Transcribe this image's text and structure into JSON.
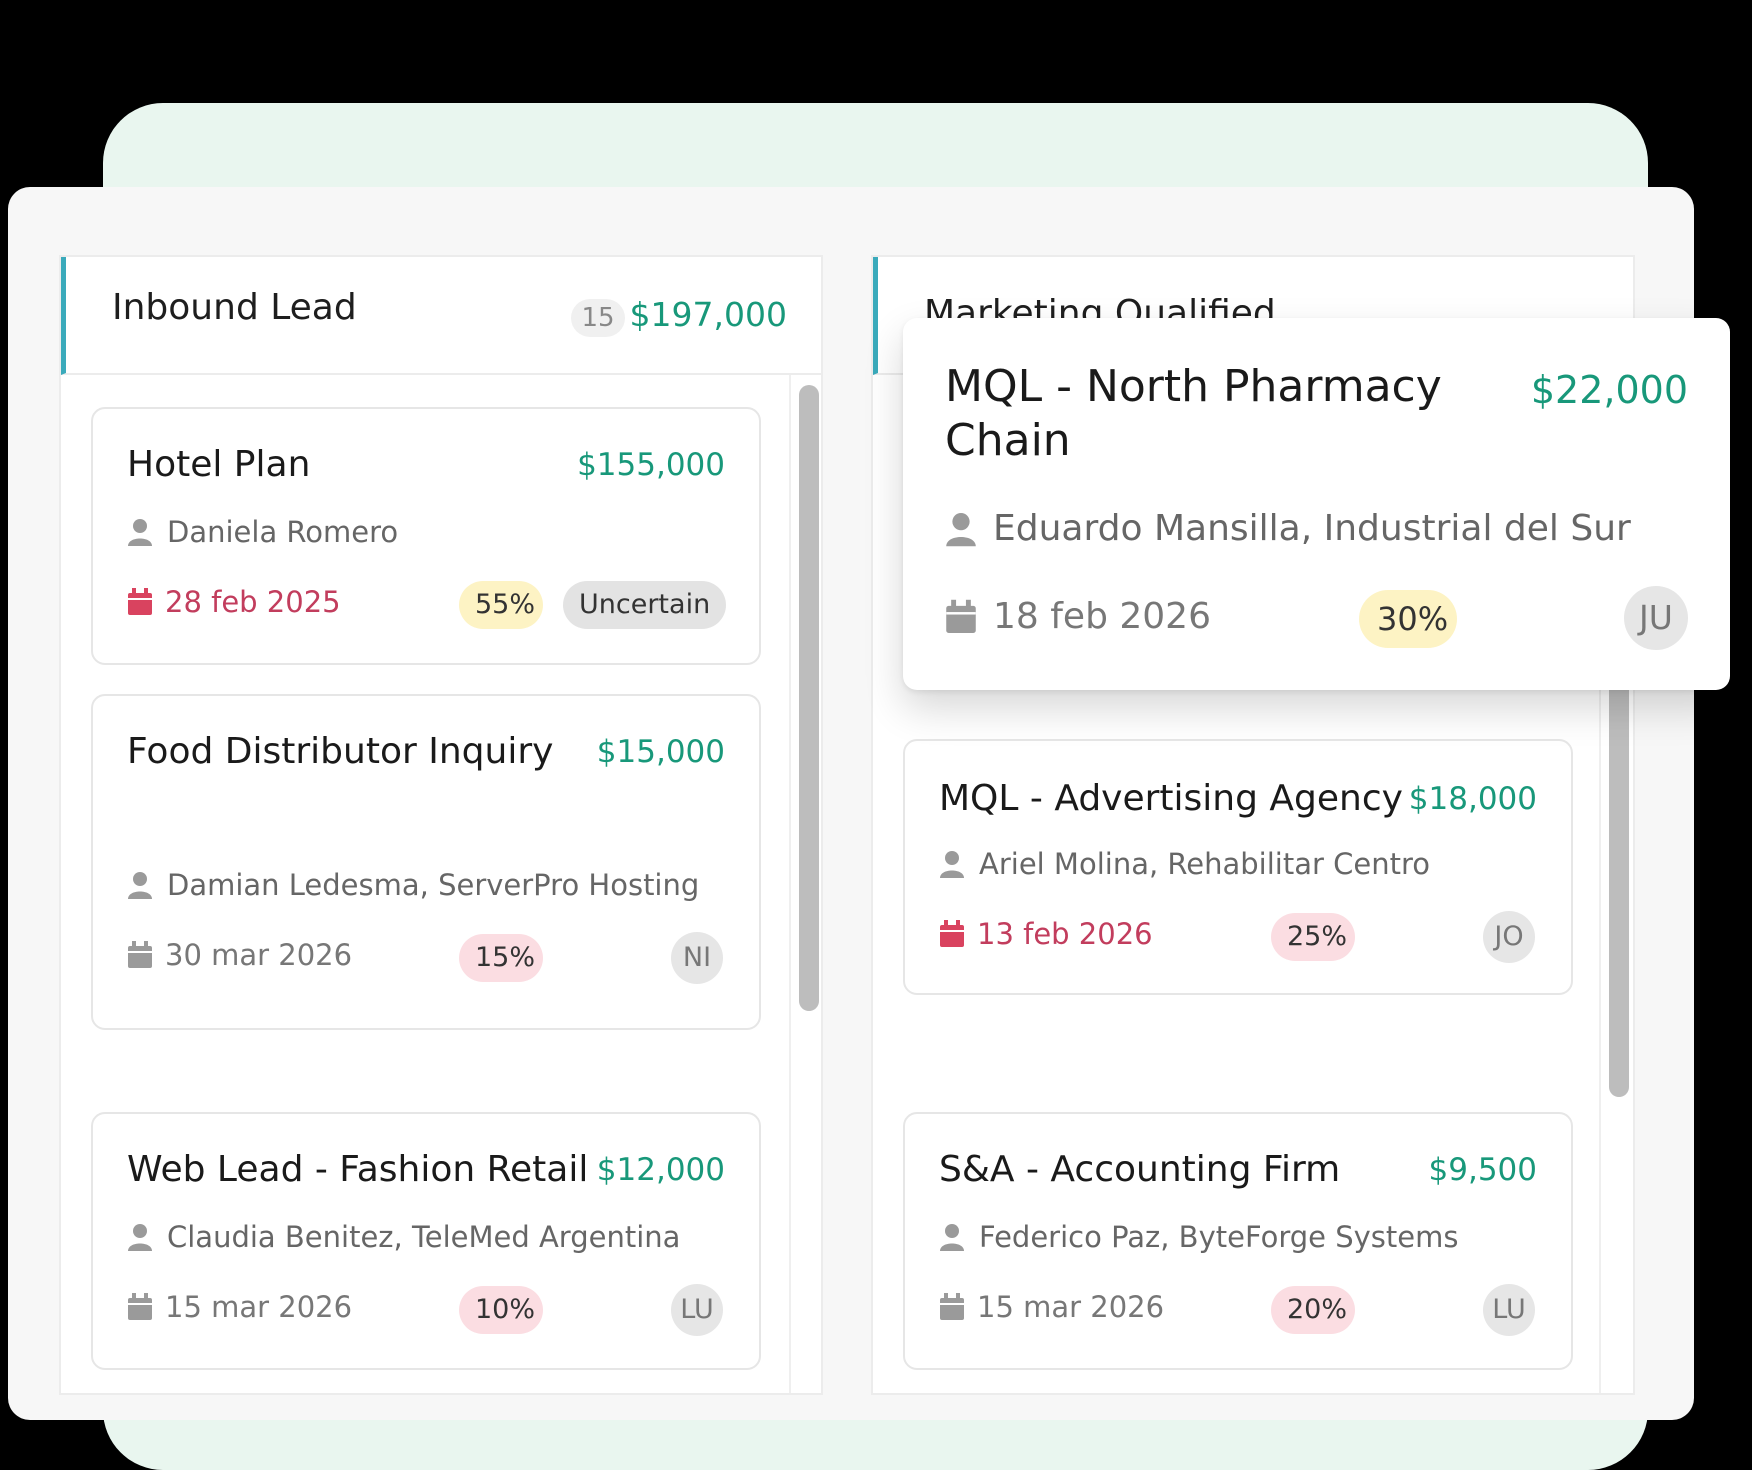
{
  "columns": [
    {
      "title": "Inbound Lead",
      "count": "15",
      "total": "$197,000",
      "cards": [
        {
          "title": "Hotel Plan",
          "amount": "$155,000",
          "contact": "Daniela Romero",
          "date": "28 feb 2025",
          "probability": "55%",
          "status": "Uncertain"
        },
        {
          "title": "Food Distributor Inquiry",
          "amount": "$15,000",
          "contact": "Damian Ledesma, ServerPro Hosting",
          "date": "30 mar 2026",
          "probability": "15%",
          "owner": "NI"
        },
        {
          "title": "Web Lead - Fashion Retail",
          "amount": "$12,000",
          "contact": "Claudia Benitez, TeleMed Argentina",
          "date": "15 mar 2026",
          "probability": "10%",
          "owner": "LU"
        }
      ]
    },
    {
      "title": "Marketing Qualified",
      "cards": [
        {
          "title": "MQL - Advertising Agency",
          "amount": "$18,000",
          "contact": "Ariel Molina, Rehabilitar Centro",
          "date": "13 feb 2026",
          "probability": "25%",
          "owner": "JO"
        },
        {
          "title": "S&A - Accounting Firm",
          "amount": "$9,500",
          "contact": "Federico Paz, ByteForge Systems",
          "date": "15 mar 2026",
          "probability": "20%",
          "owner": "LU"
        }
      ]
    }
  ],
  "dragged_card": {
    "title": "MQL - North Pharmacy Chain",
    "amount": "$22,000",
    "contact": "Eduardo Mansilla, Industrial del Sur",
    "date": "18 feb 2026",
    "probability": "30%",
    "owner": "JU"
  },
  "icons": {
    "contact": "person-icon",
    "date": "calendar-icon"
  },
  "colors": {
    "accent": "#3aaabb",
    "amount": "#18987a",
    "overdue": "#c23d5d",
    "yellow_pill": "#fdf3c4",
    "red_pill": "#fbdde2"
  }
}
